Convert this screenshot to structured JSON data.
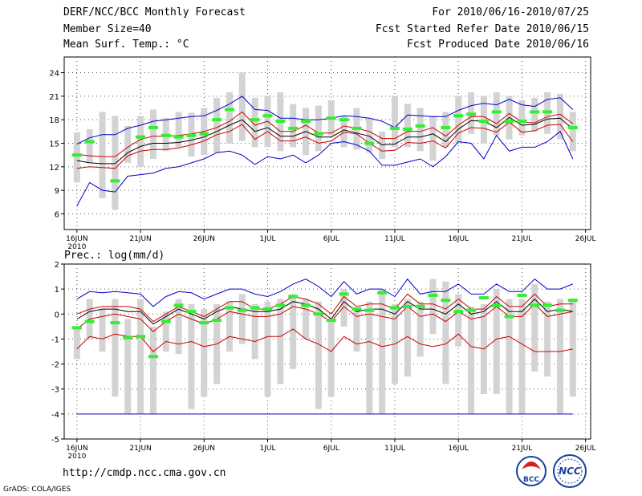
{
  "header": {
    "title": "DERF/NCC/BCC Monthly Forecast",
    "member_size": "Member Size=40",
    "variable": "Mean Surf. Temp.: °C",
    "period": "For 2010/06/16-2010/07/25",
    "fcst_started": "Fcst Started Refer Date 2010/06/15",
    "fcst_produced": "Fcst Produced Date 2010/06/16"
  },
  "footer": {
    "url": "http://cmdp.ncc.cma.gov.cn",
    "credit": "GrADS: COLA/IGES"
  },
  "logos": {
    "bcc": "BCC",
    "ncc": "NCC"
  },
  "colors": {
    "ensemble_range": "#0000cc",
    "spread": "#cc0000",
    "mean": "#000000",
    "observed": "#33ee33",
    "bars": "#d3d3d3"
  },
  "chart_data": [
    {
      "type": "line",
      "title": "Mean Surf. Temp.: °C",
      "ylim": [
        4,
        26
      ],
      "yticks": [
        6,
        9,
        12,
        15,
        18,
        21,
        24
      ],
      "x_tick_days": [
        0,
        5,
        10,
        15,
        20,
        25,
        30,
        35,
        40
      ],
      "x_tick_labels": [
        "16JUN",
        "21JUN",
        "26JUN",
        "1JUL",
        "6JUL",
        "11JUL",
        "16JUL",
        "21JUL",
        "26JUL"
      ],
      "x_year_label": "2010",
      "days": [
        0,
        1,
        2,
        3,
        4,
        5,
        6,
        7,
        8,
        9,
        10,
        11,
        12,
        13,
        14,
        15,
        16,
        17,
        18,
        19,
        20,
        21,
        22,
        23,
        24,
        25,
        26,
        27,
        28,
        29,
        30,
        31,
        32,
        33,
        34,
        35,
        36,
        37,
        38,
        39
      ],
      "series": [
        {
          "name": "max",
          "color": "blue",
          "values": [
            14.9,
            15.7,
            16.1,
            16.1,
            16.9,
            17.3,
            17.8,
            18.0,
            18.2,
            18.4,
            18.5,
            19.2,
            20.0,
            21.0,
            19.3,
            19.2,
            18.2,
            18.2,
            18.0,
            18.0,
            18.2,
            18.5,
            18.4,
            18.2,
            17.8,
            17.0,
            18.6,
            18.5,
            18.4,
            18.4,
            19.2,
            19.8,
            20.1,
            19.9,
            20.6,
            19.9,
            19.7,
            20.6,
            20.8,
            19.3
          ]
        },
        {
          "name": "upper",
          "color": "red",
          "values": [
            13.6,
            13.4,
            13.3,
            13.3,
            14.5,
            15.5,
            15.9,
            15.9,
            16.0,
            16.2,
            16.5,
            17.0,
            17.8,
            19.0,
            17.3,
            17.8,
            16.5,
            16.5,
            17.3,
            16.3,
            16.3,
            17.2,
            16.9,
            16.5,
            15.6,
            15.6,
            16.5,
            16.5,
            17.0,
            15.9,
            17.3,
            18.4,
            18.4,
            17.5,
            18.8,
            17.7,
            17.6,
            18.4,
            18.7,
            17.5
          ]
        },
        {
          "name": "mean",
          "color": "black",
          "values": [
            12.8,
            12.5,
            12.4,
            12.4,
            13.8,
            14.6,
            15.0,
            15.0,
            15.1,
            15.4,
            15.8,
            16.5,
            17.3,
            18.0,
            16.5,
            17.0,
            15.9,
            15.9,
            16.5,
            15.8,
            15.8,
            16.7,
            16.3,
            15.9,
            14.8,
            14.9,
            15.8,
            15.8,
            16.2,
            15.2,
            16.8,
            17.9,
            17.8,
            17.0,
            18.3,
            17.3,
            17.4,
            18.1,
            18.2,
            16.8
          ]
        },
        {
          "name": "lower",
          "color": "red",
          "values": [
            11.8,
            12.0,
            11.9,
            11.8,
            13.4,
            14.0,
            14.2,
            14.2,
            14.4,
            14.8,
            15.3,
            16.1,
            16.5,
            17.4,
            15.5,
            16.5,
            15.3,
            15.3,
            15.8,
            15.0,
            15.3,
            16.4,
            16.2,
            15.0,
            14.0,
            14.1,
            15.1,
            15.0,
            15.3,
            14.4,
            16.3,
            17.0,
            16.9,
            16.4,
            17.7,
            16.4,
            16.6,
            17.3,
            17.4,
            15.2
          ]
        },
        {
          "name": "min",
          "color": "blue",
          "values": [
            7.0,
            10.0,
            9.0,
            8.8,
            10.8,
            11.0,
            11.2,
            11.8,
            12.0,
            12.5,
            13.0,
            13.8,
            14.0,
            13.5,
            12.3,
            13.3,
            13.0,
            13.5,
            12.5,
            13.5,
            15.0,
            15.2,
            14.8,
            14.0,
            12.2,
            12.2,
            12.6,
            13.0,
            12.0,
            13.3,
            15.2,
            15.0,
            13.0,
            16.0,
            14.0,
            14.5,
            14.5,
            15.2,
            16.5,
            13.0
          ]
        }
      ],
      "range_bars": [
        [
          10.0,
          16.4
        ],
        [
          12.5,
          16.8
        ],
        [
          8.0,
          19.0
        ],
        [
          6.5,
          18.5
        ],
        [
          12.5,
          17.2
        ],
        [
          12.0,
          18.5
        ],
        [
          13.0,
          19.3
        ],
        [
          14.0,
          18.2
        ],
        [
          14.5,
          19.0
        ],
        [
          13.3,
          18.9
        ],
        [
          13.5,
          19.5
        ],
        [
          13.8,
          20.8
        ],
        [
          15.0,
          21.5
        ],
        [
          15.3,
          24.0
        ],
        [
          14.5,
          20.8
        ],
        [
          14.5,
          21.0
        ],
        [
          14.0,
          21.5
        ],
        [
          14.5,
          20.0
        ],
        [
          13.5,
          19.5
        ],
        [
          14.0,
          19.8
        ],
        [
          16.0,
          20.5
        ],
        [
          14.5,
          18.5
        ],
        [
          14.2,
          19.5
        ],
        [
          13.8,
          18.2
        ],
        [
          13.0,
          16.5
        ],
        [
          14.5,
          21.0
        ],
        [
          14.5,
          20.0
        ],
        [
          14.0,
          19.5
        ],
        [
          12.8,
          18.5
        ],
        [
          14.5,
          19.0
        ],
        [
          15.0,
          21.0
        ],
        [
          16.2,
          21.5
        ],
        [
          15.0,
          21.0
        ],
        [
          16.0,
          21.5
        ],
        [
          15.5,
          21.0
        ],
        [
          16.0,
          20.5
        ],
        [
          16.5,
          20.8
        ],
        [
          16.2,
          21.5
        ],
        [
          15.5,
          21.3
        ],
        [
          14.0,
          19.0
        ]
      ],
      "observed": [
        13.5,
        15.2,
        null,
        10.2,
        null,
        15.8,
        17.0,
        16.0,
        15.8,
        16.0,
        16.2,
        18.0,
        19.3,
        null,
        18.0,
        18.5,
        17.8,
        16.9,
        17.8,
        16.2,
        18.2,
        18.0,
        16.9,
        15.0,
        null,
        16.9,
        16.8,
        17.2,
        null,
        17.0,
        18.5,
        18.7,
        17.8,
        19.0,
        17.8,
        17.8,
        19.0,
        19.0,
        null,
        17.0
      ]
    },
    {
      "type": "line",
      "title": "Prec.: log(mm/d)",
      "ylim": [
        -5,
        2
      ],
      "yticks": [
        -5,
        -4,
        -3,
        -2,
        -1,
        0,
        1,
        2
      ],
      "x_tick_days": [
        0,
        5,
        10,
        15,
        20,
        25,
        30,
        35,
        40
      ],
      "x_tick_labels": [
        "16JUN",
        "21JUN",
        "26JUN",
        "1JUL",
        "6JUL",
        "11JUL",
        "16JUL",
        "21JUL",
        "26JUL"
      ],
      "x_year_label": "2010",
      "days": [
        0,
        1,
        2,
        3,
        4,
        5,
        6,
        7,
        8,
        9,
        10,
        11,
        12,
        13,
        14,
        15,
        16,
        17,
        18,
        19,
        20,
        21,
        22,
        23,
        24,
        25,
        26,
        27,
        28,
        29,
        30,
        31,
        32,
        33,
        34,
        35,
        36,
        37,
        38,
        39
      ],
      "series": [
        {
          "name": "max",
          "color": "blue",
          "values": [
            0.6,
            0.9,
            0.85,
            0.9,
            0.85,
            0.8,
            0.3,
            0.7,
            0.9,
            0.85,
            0.6,
            0.8,
            1.0,
            1.0,
            0.8,
            0.7,
            0.9,
            1.2,
            1.4,
            1.1,
            0.7,
            1.3,
            0.8,
            1.0,
            1.0,
            0.7,
            1.4,
            0.8,
            0.9,
            0.9,
            1.2,
            0.8,
            0.8,
            1.2,
            0.9,
            0.9,
            1.4,
            1.0,
            1.0,
            1.2
          ]
        },
        {
          "name": "upper",
          "color": "red",
          "values": [
            0.0,
            0.2,
            0.3,
            0.3,
            0.3,
            0.2,
            -0.3,
            0.0,
            0.3,
            0.1,
            -0.1,
            0.2,
            0.5,
            0.5,
            0.2,
            0.2,
            0.4,
            0.7,
            0.6,
            0.4,
            0.0,
            0.7,
            0.3,
            0.4,
            0.4,
            0.2,
            0.8,
            0.4,
            0.4,
            0.2,
            0.6,
            0.2,
            0.2,
            0.7,
            0.3,
            0.3,
            0.8,
            0.3,
            0.4,
            0.4
          ]
        },
        {
          "name": "mean",
          "color": "black",
          "values": [
            -0.2,
            0.1,
            0.2,
            0.2,
            0.1,
            0.1,
            -0.4,
            -0.1,
            0.2,
            0.0,
            -0.2,
            0.1,
            0.3,
            0.2,
            0.1,
            0.1,
            0.2,
            0.5,
            0.4,
            0.2,
            -0.2,
            0.5,
            0.1,
            0.2,
            0.2,
            0.0,
            0.5,
            0.2,
            0.2,
            0.0,
            0.4,
            0.0,
            0.1,
            0.5,
            0.1,
            0.1,
            0.6,
            0.1,
            0.2,
            0.1
          ]
        },
        {
          "name": "lower",
          "color": "red",
          "values": [
            -0.6,
            -0.2,
            -0.1,
            0.0,
            -0.1,
            -0.2,
            -0.7,
            -0.3,
            0.0,
            -0.2,
            -0.4,
            -0.2,
            0.1,
            0.0,
            -0.1,
            -0.1,
            0.0,
            0.3,
            0.2,
            0.0,
            -0.3,
            0.3,
            -0.1,
            0.0,
            -0.1,
            -0.2,
            0.3,
            -0.1,
            0.0,
            -0.3,
            0.1,
            -0.2,
            -0.1,
            0.3,
            -0.1,
            -0.1,
            0.4,
            -0.1,
            0.0,
            0.1
          ]
        },
        {
          "name": "min",
          "color": "red",
          "values": [
            -1.4,
            -0.9,
            -1.0,
            -0.8,
            -0.9,
            -0.9,
            -1.5,
            -1.1,
            -1.2,
            -1.1,
            -1.3,
            -1.2,
            -0.9,
            -1.0,
            -1.1,
            -0.9,
            -0.9,
            -0.6,
            -1.0,
            -1.2,
            -1.5,
            -0.9,
            -1.2,
            -1.1,
            -1.3,
            -1.2,
            -0.9,
            -1.2,
            -1.3,
            -1.2,
            -0.8,
            -1.3,
            -1.4,
            -1.0,
            -0.9,
            -1.2,
            -1.5,
            -1.5,
            -1.5,
            -1.4
          ]
        },
        {
          "name": "floor",
          "color": "blue",
          "values": [
            -4,
            -4,
            -4,
            -4,
            -4,
            -4,
            -4,
            -4,
            -4,
            -4,
            -4,
            -4,
            -4,
            -4,
            -4,
            -4,
            -4,
            -4,
            -4,
            -4,
            -4,
            -4,
            -4,
            -4,
            -4,
            -4,
            -4,
            -4,
            -4,
            -4,
            -4,
            -4,
            -4,
            -4,
            -4,
            -4,
            -4,
            -4,
            -4,
            -4
          ]
        }
      ],
      "range_bars": [
        [
          -1.8,
          -0.5
        ],
        [
          -1.0,
          0.6
        ],
        [
          -1.5,
          0.2
        ],
        [
          -3.3,
          0.6
        ],
        [
          -4.0,
          -0.2
        ],
        [
          -4.0,
          0.6
        ],
        [
          -4.0,
          -0.5
        ],
        [
          -1.5,
          0.1
        ],
        [
          -1.6,
          0.6
        ],
        [
          -3.8,
          0.4
        ],
        [
          -3.3,
          0.2
        ],
        [
          -2.8,
          0.4
        ],
        [
          -1.5,
          0.5
        ],
        [
          -1.2,
          0.8
        ],
        [
          -1.8,
          0.4
        ],
        [
          -3.3,
          0.5
        ],
        [
          -2.8,
          0.6
        ],
        [
          -2.2,
          0.8
        ],
        [
          -1.0,
          0.6
        ],
        [
          -3.8,
          0.5
        ],
        [
          -3.3,
          -0.3
        ],
        [
          -0.5,
          1.0
        ],
        [
          -1.5,
          0.2
        ],
        [
          -4.0,
          0.5
        ],
        [
          -4.0,
          1.0
        ],
        [
          -2.8,
          0.4
        ],
        [
          -2.5,
          0.6
        ],
        [
          -1.7,
          0.5
        ],
        [
          -0.8,
          1.4
        ],
        [
          -2.8,
          1.3
        ],
        [
          -1.3,
          0.8
        ],
        [
          -4.0,
          0.3
        ],
        [
          -3.2,
          0.4
        ],
        [
          -3.2,
          1.0
        ],
        [
          -4.0,
          0.6
        ],
        [
          -4.0,
          0.6
        ],
        [
          -2.3,
          1.2
        ],
        [
          -2.5,
          0.5
        ],
        [
          -4.0,
          0.6
        ],
        [
          -3.3,
          0.5
        ]
      ],
      "observed": [
        -0.55,
        -0.3,
        null,
        -0.35,
        -0.95,
        -0.9,
        -1.7,
        -0.3,
        0.35,
        0.1,
        -0.35,
        -0.25,
        0.25,
        0.15,
        0.25,
        0.2,
        0.35,
        0.7,
        0.35,
        0.0,
        -0.25,
        0.8,
        0.2,
        0.15,
        0.85,
        0.25,
        0.3,
        0.3,
        0.75,
        0.55,
        0.1,
        0.15,
        0.65,
        0.35,
        -0.1,
        0.75,
        0.35,
        0.35,
        0.15,
        0.55
      ]
    }
  ]
}
